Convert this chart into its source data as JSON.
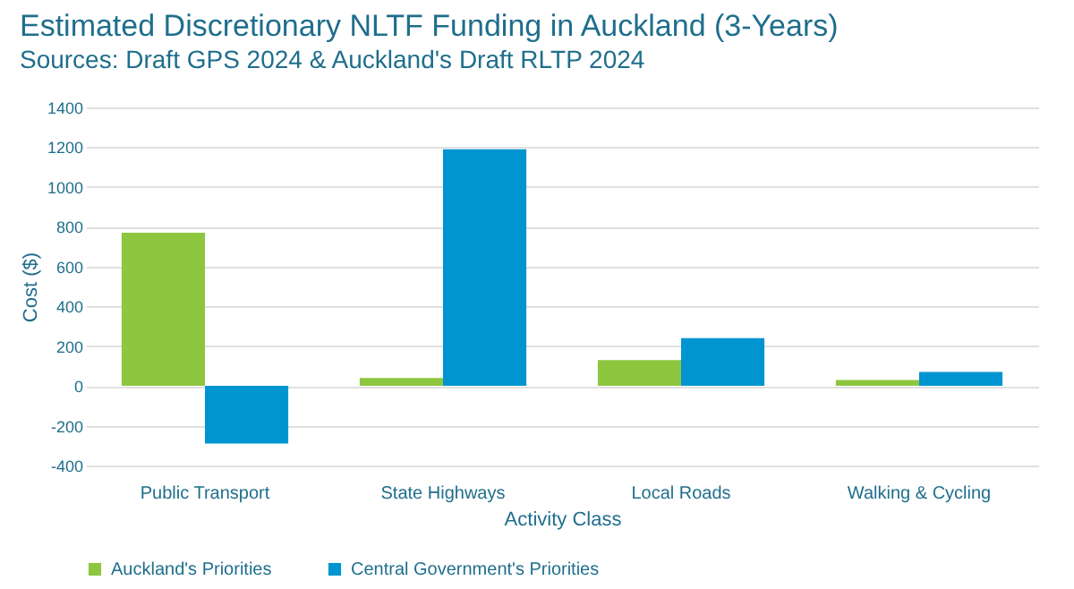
{
  "chart_data": {
    "type": "bar",
    "title": "Estimated Discretionary NLTF Funding in Auckland (3-Years)",
    "subtitle": "Sources: Draft GPS 2024 & Auckland's Draft RLTP 2024",
    "xlabel": "Activity Class",
    "ylabel": "Cost ($)",
    "categories": [
      "Public Transport",
      "State Highways",
      "Local Roads",
      "Walking & Cycling"
    ],
    "series": [
      {
        "name": "Auckland's Priorities",
        "color": "#8dc63f",
        "values": [
          770,
          40,
          130,
          30
        ]
      },
      {
        "name": "Central Government's Priorities",
        "color": "#0095d0",
        "values": [
          -290,
          1190,
          240,
          70
        ]
      }
    ],
    "ylim": [
      -400,
      1400
    ],
    "yticks": [
      -400,
      -200,
      0,
      200,
      400,
      600,
      800,
      1000,
      1200,
      1400
    ],
    "grid": "y",
    "legend": "bottom"
  }
}
